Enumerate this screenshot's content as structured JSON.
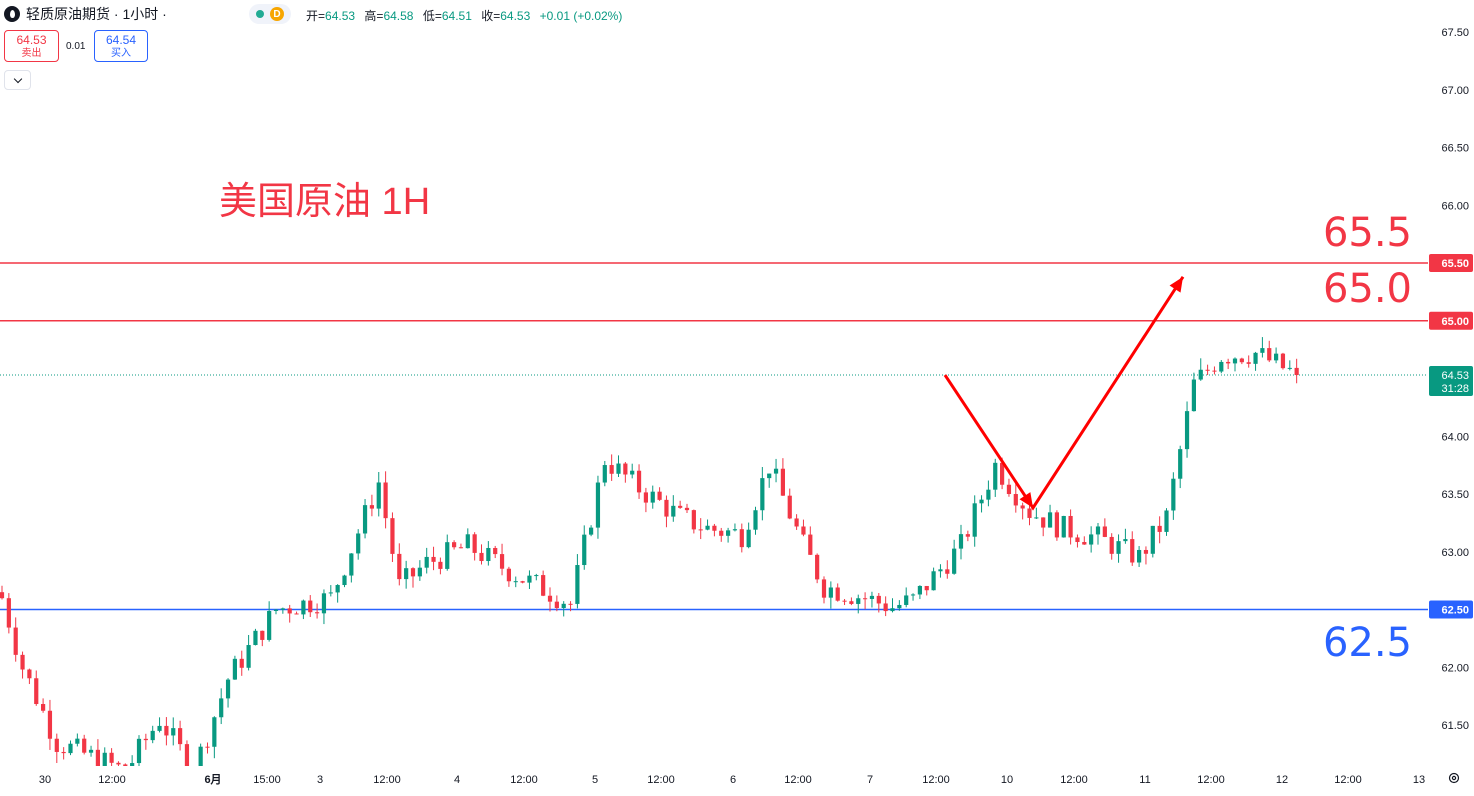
{
  "header": {
    "symbol_title": "轻质原油期货 · 1小时 ·",
    "status_badge": "D",
    "ohlc": [
      {
        "label": "开",
        "value": "64.53"
      },
      {
        "label": "高",
        "value": "64.58"
      },
      {
        "label": "低",
        "value": "64.51"
      },
      {
        "label": "收",
        "value": "64.53"
      }
    ],
    "change": "+0.01 (+0.02%)"
  },
  "trade": {
    "sell_price": "64.53",
    "sell_label": "卖出",
    "spread": "0.01",
    "buy_price": "64.54",
    "buy_label": "买入"
  },
  "colors": {
    "up": "#089981",
    "down": "#f23645",
    "resistance": "#f23645",
    "support": "#2962ff",
    "arrow": "#ff0000"
  },
  "chart_data": {
    "type": "candlestick",
    "title": "美国原油 1H",
    "ylim": [
      61.2,
      67.7
    ],
    "y_ticks": [
      "61.50",
      "62.00",
      "62.50",
      "63.00",
      "63.50",
      "64.00",
      "64.50",
      "65.00",
      "65.50",
      "66.00",
      "66.50",
      "67.00",
      "67.50"
    ],
    "x_ticks": [
      "30",
      "12:00",
      "6月",
      "15:00",
      "3",
      "12:00",
      "4",
      "12:00",
      "5",
      "12:00",
      "6",
      "12:00",
      "7",
      "12:00",
      "10",
      "12:00",
      "11",
      "12:00",
      "12",
      "12:00",
      "13"
    ],
    "last_price": "64.53",
    "countdown": "31:28",
    "horizontal_levels": [
      {
        "value": 65.5,
        "label": "65.5",
        "axis_label": "65.50",
        "color": "#f23645"
      },
      {
        "value": 65.0,
        "label": "65.0",
        "axis_label": "65.00",
        "color": "#f23645"
      },
      {
        "value": 62.5,
        "label": "62.5",
        "axis_label": "62.50",
        "color": "#2962ff"
      }
    ],
    "forecast_path": [
      64.53,
      63.38,
      65.38
    ],
    "price_keypoints": [
      [
        0,
        62.6
      ],
      [
        3,
        62.0
      ],
      [
        8,
        61.35
      ],
      [
        18,
        61.1
      ],
      [
        23,
        61.55
      ],
      [
        28,
        61.1
      ],
      [
        33,
        61.9
      ],
      [
        40,
        62.5
      ],
      [
        48,
        62.6
      ],
      [
        55,
        63.6
      ],
      [
        58,
        62.7
      ],
      [
        62,
        62.9
      ],
      [
        68,
        63.05
      ],
      [
        75,
        62.8
      ],
      [
        80,
        62.65
      ],
      [
        83,
        62.55
      ],
      [
        88,
        63.8
      ],
      [
        93,
        63.55
      ],
      [
        99,
        63.3
      ],
      [
        103,
        63.2
      ],
      [
        108,
        63.15
      ],
      [
        112,
        63.75
      ],
      [
        117,
        63.05
      ],
      [
        120,
        62.7
      ],
      [
        126,
        62.6
      ],
      [
        130,
        62.52
      ],
      [
        133,
        62.58
      ],
      [
        140,
        63.05
      ],
      [
        145,
        63.75
      ],
      [
        150,
        63.35
      ],
      [
        155,
        63.2
      ],
      [
        160,
        63.12
      ],
      [
        166,
        62.95
      ],
      [
        170,
        63.3
      ],
      [
        174,
        64.45
      ],
      [
        178,
        64.7
      ],
      [
        183,
        64.72
      ],
      [
        189,
        64.53
      ]
    ],
    "candle_count": 190
  }
}
